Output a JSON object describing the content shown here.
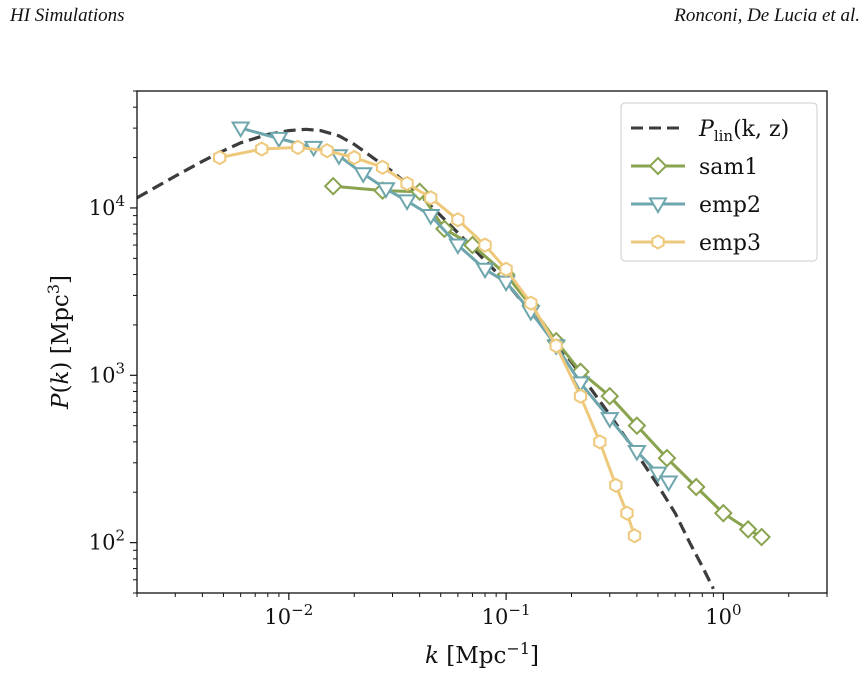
{
  "header": {
    "left": "HI Simulations",
    "right": "Ronconi, De Lucia et al."
  },
  "chart_data": {
    "type": "line",
    "xlabel": "k [Mpc⁻¹]",
    "ylabel": "P(k) [Mpc³]",
    "xscale": "log",
    "yscale": "log",
    "xlim": [
      0.002,
      3.0
    ],
    "ylim": [
      50,
      50000
    ],
    "x_ticks": [
      {
        "value": 0.01,
        "base": "10",
        "exp": "−2"
      },
      {
        "value": 0.1,
        "base": "10",
        "exp": "−1"
      },
      {
        "value": 1.0,
        "base": "10",
        "exp": "0"
      }
    ],
    "y_ticks": [
      {
        "value": 100,
        "base": "10",
        "exp": "2"
      },
      {
        "value": 1000,
        "base": "10",
        "exp": "3"
      },
      {
        "value": 10000,
        "base": "10",
        "exp": "4"
      }
    ],
    "legend_position": "top-right",
    "grid": false,
    "series": [
      {
        "name": "P_lin(k, z)",
        "label_main": "P",
        "label_sub": "lin",
        "label_args": "(k, z)",
        "style": "dashed",
        "color": "#3c3c3c",
        "marker": "none",
        "x": [
          0.002,
          0.003,
          0.004,
          0.005,
          0.006,
          0.008,
          0.01,
          0.012,
          0.014,
          0.017,
          0.02,
          0.025,
          0.03,
          0.04,
          0.05,
          0.07,
          0.1,
          0.15,
          0.2,
          0.3,
          0.4,
          0.5,
          0.6,
          0.7,
          0.8,
          0.9
        ],
        "y": [
          11500,
          15500,
          19000,
          22000,
          24500,
          27500,
          29000,
          29500,
          29000,
          27000,
          24000,
          19500,
          16500,
          12000,
          9000,
          5800,
          3600,
          1900,
          1200,
          580,
          340,
          220,
          150,
          100,
          72,
          53
        ]
      },
      {
        "name": "sam1",
        "style": "solid",
        "color": "#8aa34f",
        "marker": "diamond",
        "x": [
          0.016,
          0.027,
          0.04,
          0.052,
          0.07,
          0.1,
          0.13,
          0.17,
          0.22,
          0.3,
          0.4,
          0.55,
          0.75,
          1.0,
          1.3,
          1.5
        ],
        "y": [
          13500,
          12700,
          12500,
          7500,
          6000,
          4000,
          2600,
          1600,
          1050,
          750,
          500,
          320,
          215,
          150,
          120,
          108
        ]
      },
      {
        "name": "emp2",
        "style": "solid",
        "color": "#6ea6ad",
        "marker": "triangle-down",
        "x": [
          0.006,
          0.009,
          0.013,
          0.017,
          0.022,
          0.028,
          0.035,
          0.045,
          0.06,
          0.08,
          0.1,
          0.13,
          0.17,
          0.22,
          0.3,
          0.4,
          0.5,
          0.56
        ],
        "y": [
          30000,
          26000,
          23000,
          20500,
          16000,
          13000,
          11000,
          9000,
          6000,
          4300,
          3600,
          2400,
          1500,
          900,
          550,
          350,
          260,
          230
        ]
      },
      {
        "name": "emp3",
        "style": "solid",
        "color": "#eec97c",
        "marker": "hexagon",
        "x": [
          0.0048,
          0.0075,
          0.011,
          0.015,
          0.02,
          0.027,
          0.035,
          0.045,
          0.06,
          0.08,
          0.1,
          0.13,
          0.17,
          0.22,
          0.27,
          0.32,
          0.36,
          0.39
        ],
        "y": [
          20000,
          22500,
          23000,
          22000,
          20000,
          17500,
          14000,
          11500,
          8500,
          6000,
          4300,
          2700,
          1500,
          750,
          400,
          220,
          150,
          110
        ]
      }
    ]
  }
}
